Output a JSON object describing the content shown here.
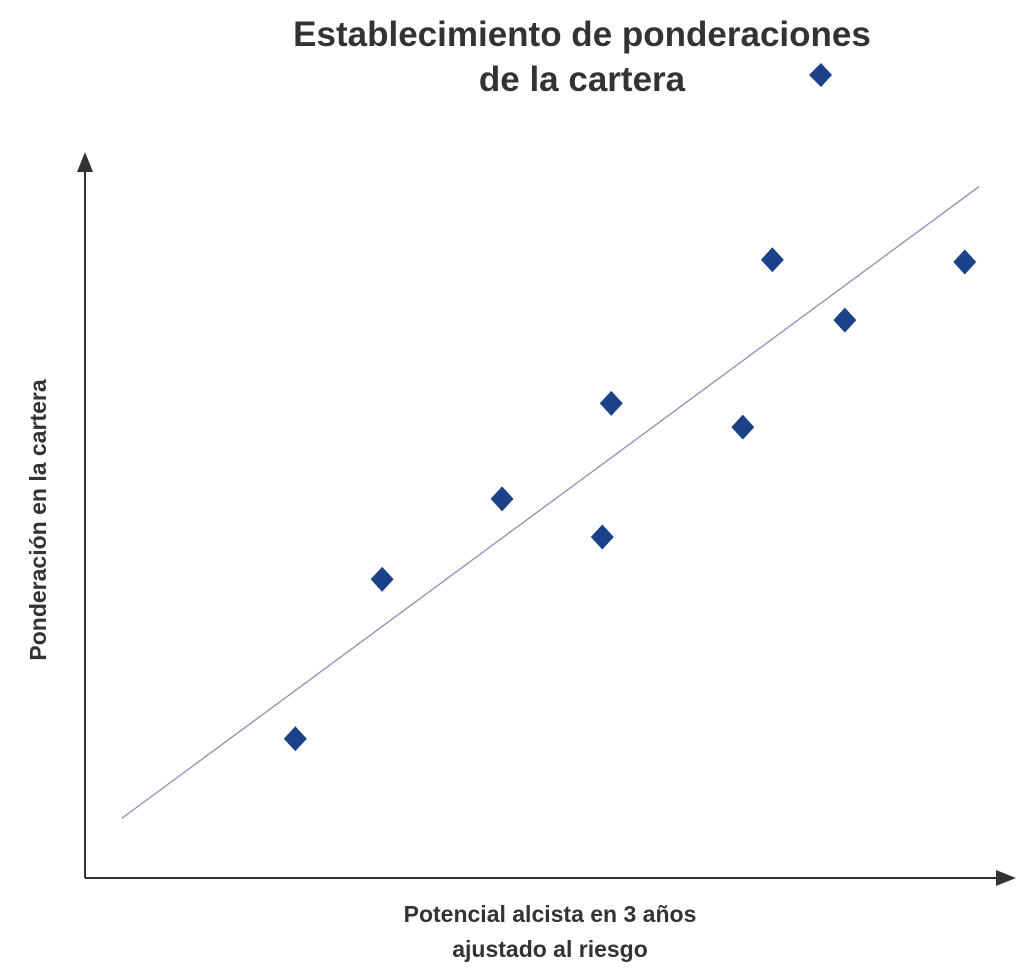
{
  "chart_data": {
    "type": "scatter",
    "title": [
      "Establecimiento de ponderaciones",
      "de la cartera"
    ],
    "xlabel": [
      "Potencial alcista en 3 años",
      "ajustado al riesgo"
    ],
    "ylabel": "Ponderación en la cartera",
    "axis_ticks": "none",
    "grid": false,
    "legend": {
      "marker": "diamond",
      "placement": "top-right",
      "label": ""
    },
    "marker_color": "#1b4189",
    "trendline_color": "#8a90b8",
    "axis_color": "#333333",
    "xlim": [
      0,
      100
    ],
    "ylim": [
      0,
      100
    ],
    "points": [
      {
        "x": 23.5,
        "y": 19.4
      },
      {
        "x": 33.2,
        "y": 41.6
      },
      {
        "x": 46.6,
        "y": 52.8
      },
      {
        "x": 57.8,
        "y": 47.5
      },
      {
        "x": 58.8,
        "y": 66.1
      },
      {
        "x": 73.5,
        "y": 62.8
      },
      {
        "x": 76.8,
        "y": 86.1
      },
      {
        "x": 84.9,
        "y": 77.7
      },
      {
        "x": 98.3,
        "y": 85.8
      }
    ],
    "trendline": {
      "x": [
        4.1,
        99.9
      ],
      "y": [
        8.3,
        96.3
      ]
    }
  }
}
